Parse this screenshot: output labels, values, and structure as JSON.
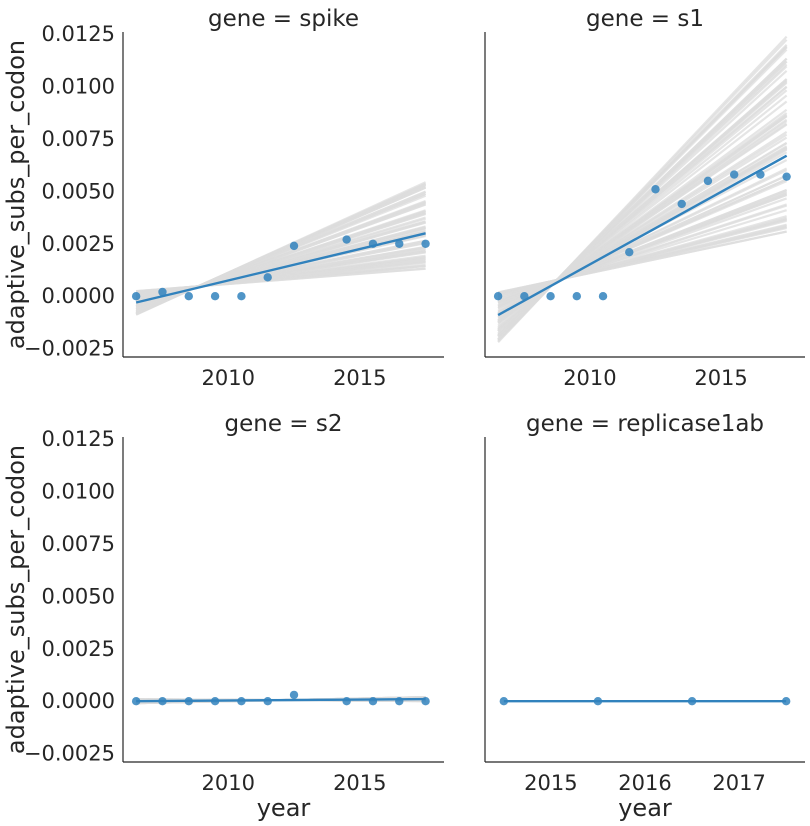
{
  "colors": {
    "line": "#3182bd",
    "bootstrap": "#dcdcdc",
    "axis": "#262626"
  },
  "chart_data": [
    {
      "type": "scatter",
      "title": "gene = spike",
      "xlabel": "",
      "ylabel": "adaptive_subs_per_codon",
      "xlim": [
        2006,
        2018.2
      ],
      "ylim": [
        -0.0029,
        0.0126
      ],
      "xticks": [
        2010,
        2015
      ],
      "xtick_labels": [
        "2010",
        "2015"
      ],
      "yticks": [
        -0.0025,
        0.0,
        0.0025,
        0.005,
        0.0075,
        0.01,
        0.0125
      ],
      "ytick_labels": [
        "−0.0025",
        "0.0000",
        "0.0025",
        "0.0050",
        "0.0075",
        "0.0100",
        "0.0125"
      ],
      "x": [
        2006.5,
        2007.5,
        2008.5,
        2009.5,
        2010.5,
        2011.5,
        2012.5,
        2014.5,
        2015.5,
        2016.5,
        2017.5
      ],
      "y": [
        0.0,
        0.0002,
        0.0,
        0.0,
        0.0,
        0.0009,
        0.0024,
        0.0027,
        0.0025,
        0.0025,
        0.0025
      ],
      "regression": {
        "x": [
          2006.5,
          2017.5
        ],
        "y": [
          -0.0003,
          0.003
        ]
      },
      "bootstrap_band": {
        "y_start": [
          -0.0009,
          0.0003
        ],
        "y_end": [
          0.0011,
          0.0055
        ]
      }
    },
    {
      "type": "scatter",
      "title": "gene = s1",
      "xlabel": "",
      "ylabel": "",
      "xlim": [
        2006,
        2018.2
      ],
      "ylim": [
        -0.0029,
        0.0126
      ],
      "xticks": [
        2010,
        2015
      ],
      "xtick_labels": [
        "2010",
        "2015"
      ],
      "yticks": [],
      "ytick_labels": [],
      "x": [
        2006.5,
        2007.5,
        2008.5,
        2009.5,
        2010.5,
        2011.5,
        2012.5,
        2013.5,
        2014.5,
        2015.5,
        2016.5,
        2017.5
      ],
      "y": [
        0.0,
        0.0,
        0.0,
        0.0,
        0.0,
        0.0021,
        0.0051,
        0.0044,
        0.0055,
        0.0058,
        0.0058,
        0.0057
      ],
      "regression": {
        "x": [
          2006.5,
          2017.5
        ],
        "y": [
          -0.0009,
          0.0067
        ]
      },
      "bootstrap_band": {
        "y_start": [
          -0.0022,
          0.0002
        ],
        "y_end": [
          0.003,
          0.0124
        ]
      }
    },
    {
      "type": "scatter",
      "title": "gene = s2",
      "xlabel": "year",
      "ylabel": "adaptive_subs_per_codon",
      "xlim": [
        2006,
        2018.2
      ],
      "ylim": [
        -0.0029,
        0.0126
      ],
      "xticks": [
        2010,
        2015
      ],
      "xtick_labels": [
        "2010",
        "2015"
      ],
      "yticks": [
        -0.0025,
        0.0,
        0.0025,
        0.005,
        0.0075,
        0.01,
        0.0125
      ],
      "ytick_labels": [
        "−0.0025",
        "0.0000",
        "0.0025",
        "0.0050",
        "0.0075",
        "0.0100",
        "0.0125"
      ],
      "x": [
        2006.5,
        2007.5,
        2008.5,
        2009.5,
        2010.5,
        2011.5,
        2012.5,
        2014.5,
        2015.5,
        2016.5,
        2017.5
      ],
      "y": [
        0.0,
        0.0,
        0.0,
        0.0,
        0.0,
        0.0,
        0.0003,
        0.0,
        0.0,
        0.0,
        0.0
      ],
      "regression": {
        "x": [
          2006.5,
          2017.5
        ],
        "y": [
          0.0,
          0.0001
        ]
      },
      "bootstrap_band": {
        "y_start": [
          -0.0001,
          0.0001
        ],
        "y_end": [
          0.0,
          0.0002
        ]
      }
    },
    {
      "type": "scatter",
      "title": "gene = replicase1ab",
      "xlabel": "year",
      "ylabel": "",
      "xlim": [
        2014.3,
        2017.7
      ],
      "ylim": [
        -0.0029,
        0.0126
      ],
      "xticks": [
        2015,
        2016,
        2017
      ],
      "xtick_labels": [
        "2015",
        "2016",
        "2017"
      ],
      "yticks": [],
      "ytick_labels": [],
      "x": [
        2014.5,
        2015.5,
        2016.5,
        2017.5
      ],
      "y": [
        0.0,
        0.0,
        0.0,
        0.0
      ],
      "regression": {
        "x": [
          2014.5,
          2017.5
        ],
        "y": [
          0.0,
          0.0
        ]
      },
      "bootstrap_band": {
        "y_start": [
          0.0,
          0.0
        ],
        "y_end": [
          0.0,
          0.0
        ]
      }
    }
  ]
}
